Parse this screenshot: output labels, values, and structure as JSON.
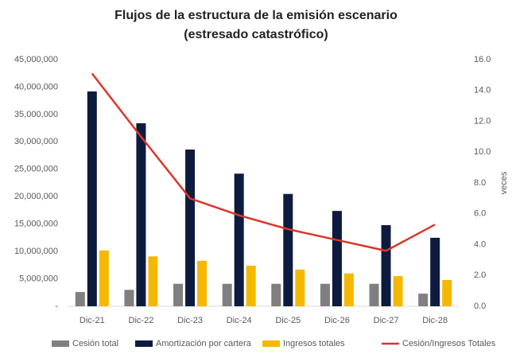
{
  "chart_data": {
    "type": "bar",
    "title": "Flujos de la estructura de la emisión escenario",
    "subtitle": "(estresado catastrófico)",
    "y2label": "veces",
    "categories": [
      "Dic-21",
      "Dic-22",
      "Dic-23",
      "Dic-24",
      "Dic-25",
      "Dic-26",
      "Dic-27",
      "Dic-28"
    ],
    "series": [
      {
        "name": "Cesión total",
        "color": "#7f7f7f",
        "values": [
          2600000,
          3000000,
          4100000,
          4100000,
          4100000,
          4100000,
          4100000,
          2300000
        ]
      },
      {
        "name": "Amortización por cartera",
        "color": "#0d1b3e",
        "values": [
          39200000,
          33400000,
          28600000,
          24200000,
          20500000,
          17400000,
          14800000,
          12500000
        ]
      },
      {
        "name": "Ingresos totales",
        "color": "#f5b800",
        "values": [
          10200000,
          9100000,
          8300000,
          7400000,
          6700000,
          6000000,
          5500000,
          4800000
        ]
      },
      {
        "name": "Cesión/Ingresos Totales",
        "color": "#d9372a",
        "type": "line",
        "axis": "y2",
        "values": [
          15.1,
          11.0,
          7.0,
          5.9,
          5.0,
          4.3,
          3.6,
          5.3
        ]
      }
    ],
    "ylim": [
      0,
      45000000
    ],
    "yticks": [
      {
        "value": 0,
        "label": "-"
      },
      {
        "value": 5000000,
        "label": "5,000,000"
      },
      {
        "value": 10000000,
        "label": "10,000,000"
      },
      {
        "value": 15000000,
        "label": "15,000,000"
      },
      {
        "value": 20000000,
        "label": "20,000,000"
      },
      {
        "value": 25000000,
        "label": "25,000,000"
      },
      {
        "value": 30000000,
        "label": "30,000,000"
      },
      {
        "value": 35000000,
        "label": "35,000,000"
      },
      {
        "value": 40000000,
        "label": "40,000,000"
      },
      {
        "value": 45000000,
        "label": "45,000,000"
      }
    ],
    "y2lim": [
      0,
      16
    ],
    "y2ticks": [
      {
        "value": 0,
        "label": "0.0"
      },
      {
        "value": 2,
        "label": "2.0"
      },
      {
        "value": 4,
        "label": "4.0"
      },
      {
        "value": 6,
        "label": "6.0"
      },
      {
        "value": 8,
        "label": "8.0"
      },
      {
        "value": 10,
        "label": "10.0"
      },
      {
        "value": 12,
        "label": "12.0"
      },
      {
        "value": 14,
        "label": "14.0"
      },
      {
        "value": 16,
        "label": "16.0"
      }
    ],
    "legend": "bottom"
  }
}
